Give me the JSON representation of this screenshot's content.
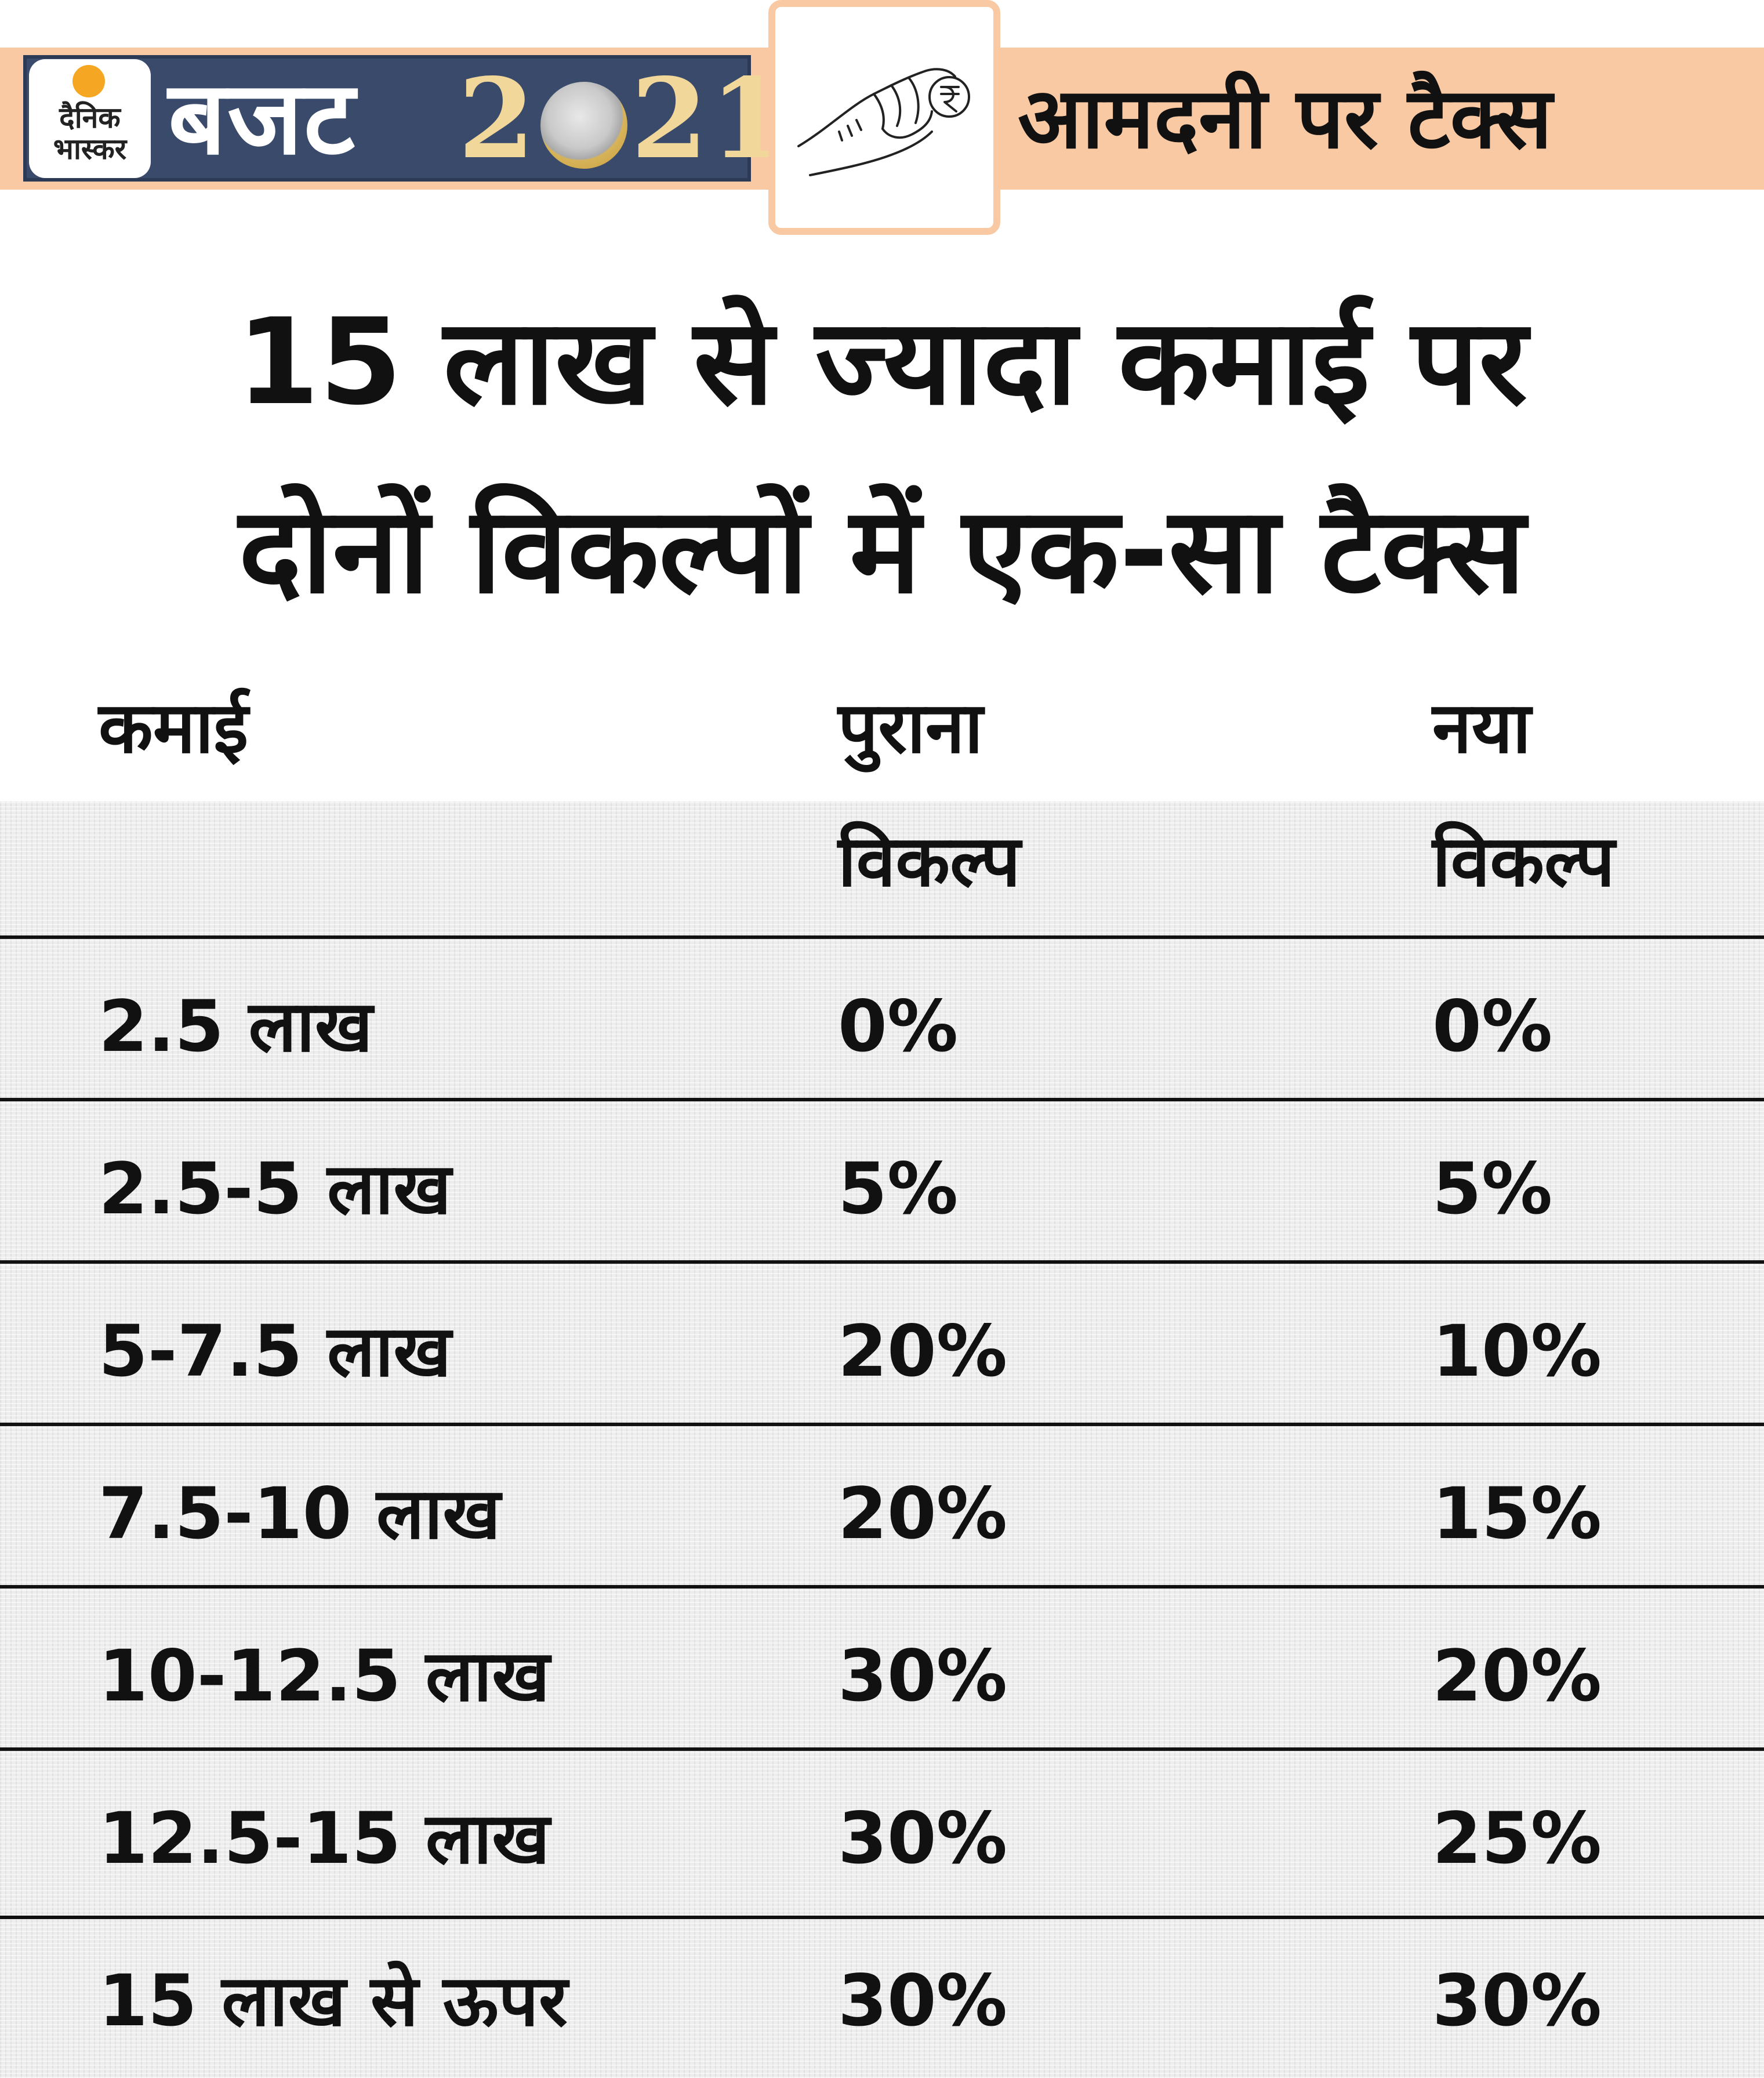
{
  "header": {
    "brand_line1": "दैनिक",
    "brand_line2": "भास्कर",
    "budget_word": "बजट",
    "year_left": "2",
    "year_right": "21",
    "subtitle": "आमदनी पर टैक्स",
    "colors": {
      "band": "#f9c9a3",
      "brand_box": "#3a4a6b",
      "year_gold": "#f1d79a",
      "sun": "#f5a623"
    }
  },
  "headline": {
    "line1": "15 लाख से ज्यादा कमाई पर",
    "line2": "दोनों विकल्पों में एक-सा टैक्स"
  },
  "columns": {
    "income": "कमाई",
    "old_line1": "पुराना",
    "old_line2": "विकल्प",
    "new_line1": "नया",
    "new_line2": "विकल्प"
  },
  "rows": [
    {
      "income": "2.5 लाख",
      "old": "0%",
      "new": "0%"
    },
    {
      "income": "2.5-5 लाख",
      "old": "5%",
      "new": "5%"
    },
    {
      "income": "5-7.5 लाख",
      "old": "20%",
      "new": "10%"
    },
    {
      "income": "7.5-10 लाख",
      "old": "20%",
      "new": "15%"
    },
    {
      "income": "10-12.5 लाख",
      "old": "30%",
      "new": "20%"
    },
    {
      "income": "12.5-15 लाख",
      "old": "30%",
      "new": "25%"
    },
    {
      "income": "15 लाख से ऊपर",
      "old": "30%",
      "new": "30%"
    }
  ]
}
